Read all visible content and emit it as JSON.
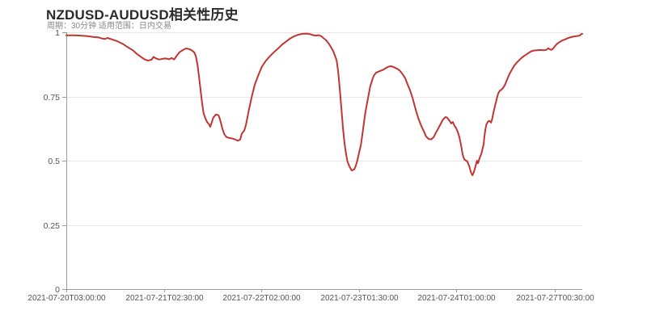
{
  "chart_data": {
    "type": "line",
    "title": "NZDUSD-AUDUSD相关性历史",
    "subtitle": "周期：30分钟 适用范围：日内交易",
    "xlabel": "",
    "ylabel": "",
    "ylim": [
      0,
      1
    ],
    "grid": "horizontal-only",
    "legend": "none",
    "colors": {
      "line": "#c23531",
      "grid": "#e8e8e8",
      "axis": "#9a9a9a",
      "tick_label": "#545454"
    },
    "y_ticks": [
      {
        "value": 0,
        "label": "0"
      },
      {
        "value": 0.25,
        "label": "0.25"
      },
      {
        "value": 0.5,
        "label": "0.5"
      },
      {
        "value": 0.75,
        "label": "0.75"
      },
      {
        "value": 1,
        "label": "1"
      }
    ],
    "x_ticks": [
      {
        "pos": 0.0,
        "label": "2021-07-20T03:00:00"
      },
      {
        "pos": 0.189,
        "label": "2021-07-21T02:30:00"
      },
      {
        "pos": 0.378,
        "label": "2021-07-22T02:00:00"
      },
      {
        "pos": 0.567,
        "label": "2021-07-23T01:30:00"
      },
      {
        "pos": 0.756,
        "label": "2021-07-24T01:00:00"
      },
      {
        "pos": 0.947,
        "label": "2021-07-27T00:30:00"
      }
    ],
    "series": [
      {
        "name": "correlation",
        "color": "#c23531",
        "points": [
          [
            0.0,
            0.988
          ],
          [
            0.008,
            0.988
          ],
          [
            0.016,
            0.988
          ],
          [
            0.028,
            0.987
          ],
          [
            0.041,
            0.985
          ],
          [
            0.052,
            0.982
          ],
          [
            0.063,
            0.98
          ],
          [
            0.069,
            0.976
          ],
          [
            0.075,
            0.974
          ],
          [
            0.08,
            0.978
          ],
          [
            0.089,
            0.972
          ],
          [
            0.099,
            0.965
          ],
          [
            0.11,
            0.954
          ],
          [
            0.119,
            0.942
          ],
          [
            0.129,
            0.93
          ],
          [
            0.136,
            0.917
          ],
          [
            0.144,
            0.905
          ],
          [
            0.152,
            0.894
          ],
          [
            0.158,
            0.89
          ],
          [
            0.165,
            0.893
          ],
          [
            0.169,
            0.904
          ],
          [
            0.174,
            0.898
          ],
          [
            0.18,
            0.894
          ],
          [
            0.187,
            0.897
          ],
          [
            0.193,
            0.898
          ],
          [
            0.199,
            0.895
          ],
          [
            0.204,
            0.9
          ],
          [
            0.209,
            0.894
          ],
          [
            0.213,
            0.906
          ],
          [
            0.219,
            0.922
          ],
          [
            0.226,
            0.931
          ],
          [
            0.232,
            0.937
          ],
          [
            0.238,
            0.935
          ],
          [
            0.243,
            0.93
          ],
          [
            0.248,
            0.922
          ],
          [
            0.251,
            0.908
          ],
          [
            0.254,
            0.876
          ],
          [
            0.257,
            0.83
          ],
          [
            0.26,
            0.778
          ],
          [
            0.263,
            0.726
          ],
          [
            0.266,
            0.685
          ],
          [
            0.27,
            0.662
          ],
          [
            0.273,
            0.65
          ],
          [
            0.276,
            0.643
          ],
          [
            0.279,
            0.632
          ],
          [
            0.282,
            0.65
          ],
          [
            0.285,
            0.668
          ],
          [
            0.29,
            0.68
          ],
          [
            0.295,
            0.677
          ],
          [
            0.298,
            0.66
          ],
          [
            0.302,
            0.628
          ],
          [
            0.306,
            0.604
          ],
          [
            0.31,
            0.592
          ],
          [
            0.317,
            0.588
          ],
          [
            0.323,
            0.586
          ],
          [
            0.328,
            0.582
          ],
          [
            0.332,
            0.578
          ],
          [
            0.337,
            0.582
          ],
          [
            0.34,
            0.605
          ],
          [
            0.345,
            0.618
          ],
          [
            0.348,
            0.638
          ],
          [
            0.351,
            0.668
          ],
          [
            0.354,
            0.7
          ],
          [
            0.359,
            0.745
          ],
          [
            0.365,
            0.795
          ],
          [
            0.372,
            0.832
          ],
          [
            0.379,
            0.866
          ],
          [
            0.387,
            0.89
          ],
          [
            0.395,
            0.908
          ],
          [
            0.403,
            0.924
          ],
          [
            0.411,
            0.938
          ],
          [
            0.418,
            0.952
          ],
          [
            0.426,
            0.964
          ],
          [
            0.434,
            0.976
          ],
          [
            0.442,
            0.985
          ],
          [
            0.45,
            0.991
          ],
          [
            0.458,
            0.994
          ],
          [
            0.466,
            0.995
          ],
          [
            0.472,
            0.993
          ],
          [
            0.478,
            0.989
          ],
          [
            0.484,
            0.987
          ],
          [
            0.489,
            0.989
          ],
          [
            0.494,
            0.985
          ],
          [
            0.498,
            0.978
          ],
          [
            0.503,
            0.97
          ],
          [
            0.508,
            0.958
          ],
          [
            0.512,
            0.945
          ],
          [
            0.517,
            0.928
          ],
          [
            0.52,
            0.912
          ],
          [
            0.524,
            0.89
          ],
          [
            0.527,
            0.845
          ],
          [
            0.53,
            0.78
          ],
          [
            0.533,
            0.705
          ],
          [
            0.536,
            0.63
          ],
          [
            0.539,
            0.57
          ],
          [
            0.542,
            0.528
          ],
          [
            0.545,
            0.496
          ],
          [
            0.549,
            0.476
          ],
          [
            0.553,
            0.462
          ],
          [
            0.558,
            0.466
          ],
          [
            0.561,
            0.48
          ],
          [
            0.564,
            0.5
          ],
          [
            0.567,
            0.527
          ],
          [
            0.571,
            0.562
          ],
          [
            0.574,
            0.605
          ],
          [
            0.577,
            0.65
          ],
          [
            0.58,
            0.692
          ],
          [
            0.583,
            0.726
          ],
          [
            0.586,
            0.758
          ],
          [
            0.589,
            0.79
          ],
          [
            0.593,
            0.815
          ],
          [
            0.596,
            0.831
          ],
          [
            0.6,
            0.842
          ],
          [
            0.605,
            0.847
          ],
          [
            0.61,
            0.851
          ],
          [
            0.614,
            0.854
          ],
          [
            0.619,
            0.86
          ],
          [
            0.624,
            0.866
          ],
          [
            0.629,
            0.868
          ],
          [
            0.633,
            0.866
          ],
          [
            0.638,
            0.861
          ],
          [
            0.643,
            0.856
          ],
          [
            0.647,
            0.849
          ],
          [
            0.652,
            0.836
          ],
          [
            0.657,
            0.82
          ],
          [
            0.661,
            0.799
          ],
          [
            0.666,
            0.775
          ],
          [
            0.671,
            0.745
          ],
          [
            0.674,
            0.722
          ],
          [
            0.677,
            0.7
          ],
          [
            0.68,
            0.68
          ],
          [
            0.683,
            0.66
          ],
          [
            0.688,
            0.636
          ],
          [
            0.693,
            0.614
          ],
          [
            0.697,
            0.595
          ],
          [
            0.702,
            0.585
          ],
          [
            0.707,
            0.583
          ],
          [
            0.712,
            0.592
          ],
          [
            0.716,
            0.608
          ],
          [
            0.721,
            0.626
          ],
          [
            0.726,
            0.645
          ],
          [
            0.73,
            0.66
          ],
          [
            0.735,
            0.67
          ],
          [
            0.738,
            0.668
          ],
          [
            0.743,
            0.655
          ],
          [
            0.746,
            0.645
          ],
          [
            0.749,
            0.651
          ],
          [
            0.752,
            0.637
          ],
          [
            0.756,
            0.625
          ],
          [
            0.759,
            0.61
          ],
          [
            0.762,
            0.59
          ],
          [
            0.765,
            0.56
          ],
          [
            0.768,
            0.525
          ],
          [
            0.771,
            0.506
          ],
          [
            0.774,
            0.501
          ],
          [
            0.777,
            0.498
          ],
          [
            0.781,
            0.478
          ],
          [
            0.784,
            0.456
          ],
          [
            0.787,
            0.443
          ],
          [
            0.79,
            0.456
          ],
          [
            0.793,
            0.478
          ],
          [
            0.796,
            0.5
          ],
          [
            0.798,
            0.49
          ],
          [
            0.801,
            0.51
          ],
          [
            0.804,
            0.525
          ],
          [
            0.806,
            0.54
          ],
          [
            0.809,
            0.565
          ],
          [
            0.81,
            0.59
          ],
          [
            0.812,
            0.62
          ],
          [
            0.814,
            0.64
          ],
          [
            0.817,
            0.652
          ],
          [
            0.82,
            0.655
          ],
          [
            0.823,
            0.648
          ],
          [
            0.825,
            0.66
          ],
          [
            0.828,
            0.69
          ],
          [
            0.831,
            0.715
          ],
          [
            0.834,
            0.74
          ],
          [
            0.837,
            0.762
          ],
          [
            0.84,
            0.772
          ],
          [
            0.843,
            0.776
          ],
          [
            0.846,
            0.782
          ],
          [
            0.85,
            0.795
          ],
          [
            0.854,
            0.815
          ],
          [
            0.859,
            0.838
          ],
          [
            0.864,
            0.856
          ],
          [
            0.868,
            0.87
          ],
          [
            0.873,
            0.882
          ],
          [
            0.878,
            0.892
          ],
          [
            0.882,
            0.9
          ],
          [
            0.887,
            0.908
          ],
          [
            0.892,
            0.914
          ],
          [
            0.897,
            0.921
          ],
          [
            0.901,
            0.926
          ],
          [
            0.906,
            0.929
          ],
          [
            0.912,
            0.93
          ],
          [
            0.918,
            0.931
          ],
          [
            0.925,
            0.93
          ],
          [
            0.931,
            0.932
          ],
          [
            0.934,
            0.938
          ],
          [
            0.937,
            0.934
          ],
          [
            0.94,
            0.931
          ],
          [
            0.944,
            0.938
          ],
          [
            0.947,
            0.946
          ],
          [
            0.951,
            0.955
          ],
          [
            0.956,
            0.962
          ],
          [
            0.961,
            0.968
          ],
          [
            0.966,
            0.972
          ],
          [
            0.972,
            0.977
          ],
          [
            0.978,
            0.981
          ],
          [
            0.984,
            0.984
          ],
          [
            0.991,
            0.986
          ],
          [
            0.995,
            0.987
          ],
          [
            0.998,
            0.993
          ],
          [
            1.0,
            0.994
          ]
        ]
      }
    ]
  }
}
